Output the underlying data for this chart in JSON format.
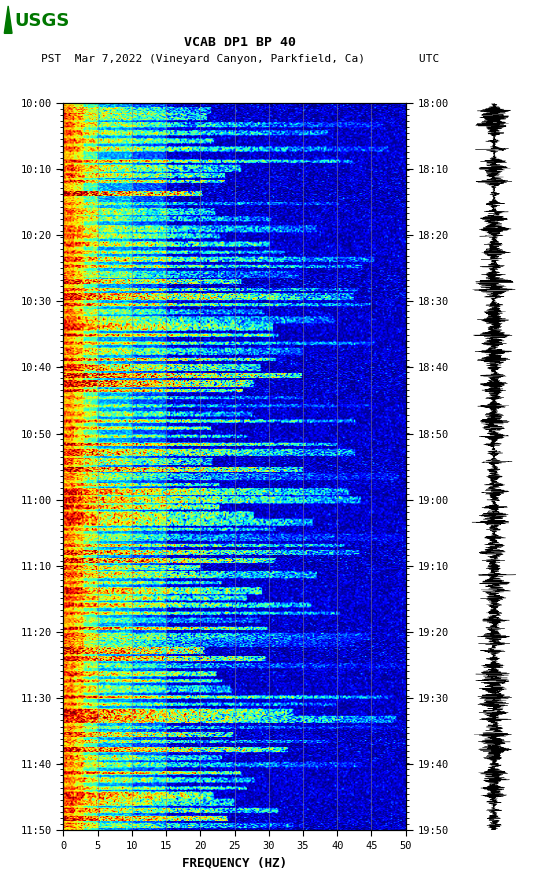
{
  "title_line1": "VCAB DP1 BP 40",
  "title_line2": "PST  Mar 7,2022 (Vineyard Canyon, Parkfield, Ca)        UTC",
  "left_times": [
    "10:00",
    "10:10",
    "10:20",
    "10:30",
    "10:40",
    "10:50",
    "11:00",
    "11:10",
    "11:20",
    "11:30",
    "11:40",
    "11:50"
  ],
  "right_times": [
    "18:00",
    "18:10",
    "18:20",
    "18:30",
    "18:40",
    "18:50",
    "19:00",
    "19:10",
    "19:20",
    "19:30",
    "19:40",
    "19:50"
  ],
  "freq_ticks": [
    0,
    5,
    10,
    15,
    20,
    25,
    30,
    35,
    40,
    45,
    50
  ],
  "xlabel": "FREQUENCY (HZ)",
  "logo_color": "#007700",
  "vline_freqs": [
    5,
    10,
    15,
    20,
    25,
    30,
    35,
    40,
    45
  ],
  "n_time": 720,
  "n_freq": 250
}
